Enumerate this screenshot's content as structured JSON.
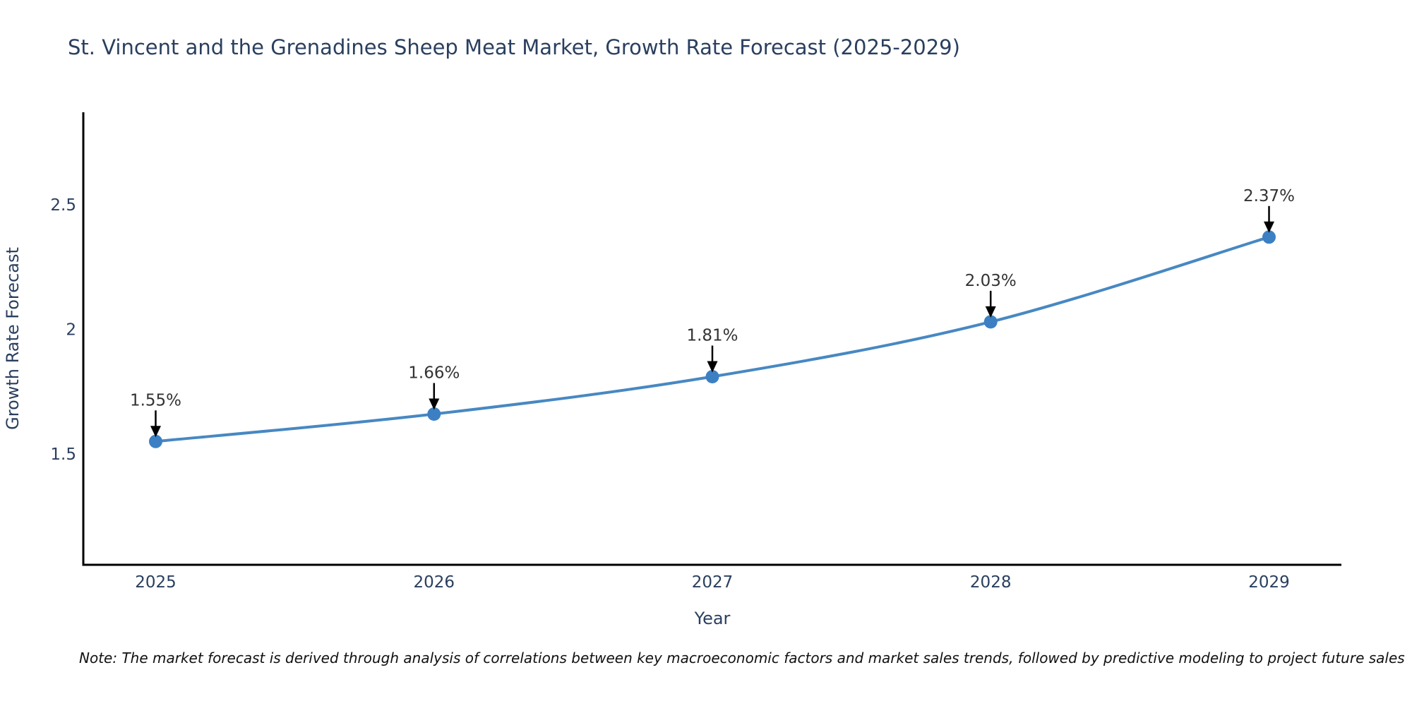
{
  "chart_data": {
    "type": "line",
    "title": "St. Vincent and the Grenadines Sheep Meat Market, Growth Rate Forecast (2025-2029)",
    "xlabel": "Year",
    "ylabel": "Growth Rate Forecast",
    "x": [
      2025,
      2026,
      2027,
      2028,
      2029
    ],
    "y": [
      1.55,
      1.66,
      1.81,
      2.03,
      2.37
    ],
    "point_labels": [
      "1.55%",
      "1.66%",
      "1.81%",
      "2.03%",
      "2.37%"
    ],
    "xticks": [
      2025,
      2026,
      2027,
      2028,
      2029
    ],
    "xtick_labels": [
      "2025",
      "2026",
      "2027",
      "2028",
      "2029"
    ],
    "yticks": [
      1.5,
      2.0,
      2.5
    ],
    "ytick_labels": [
      "1.5",
      "2",
      "2.5"
    ],
    "xlim": [
      2024.74,
      2029.26
    ],
    "ylim": [
      1.055,
      2.871
    ],
    "grid": false,
    "legend": "none",
    "line_shape": "spline",
    "line_color": "#4788c2",
    "marker_color": "#3c80c3",
    "axis_color": "#000000",
    "text_color": "#2a3f5f",
    "annotation_color": "#333333",
    "arrow_color": "#000000"
  },
  "note": {
    "text": "Note: The market forecast is derived through analysis of correlations between key macroeconomic factors and market sales trends, followed by predictive modeling to project future sales"
  }
}
